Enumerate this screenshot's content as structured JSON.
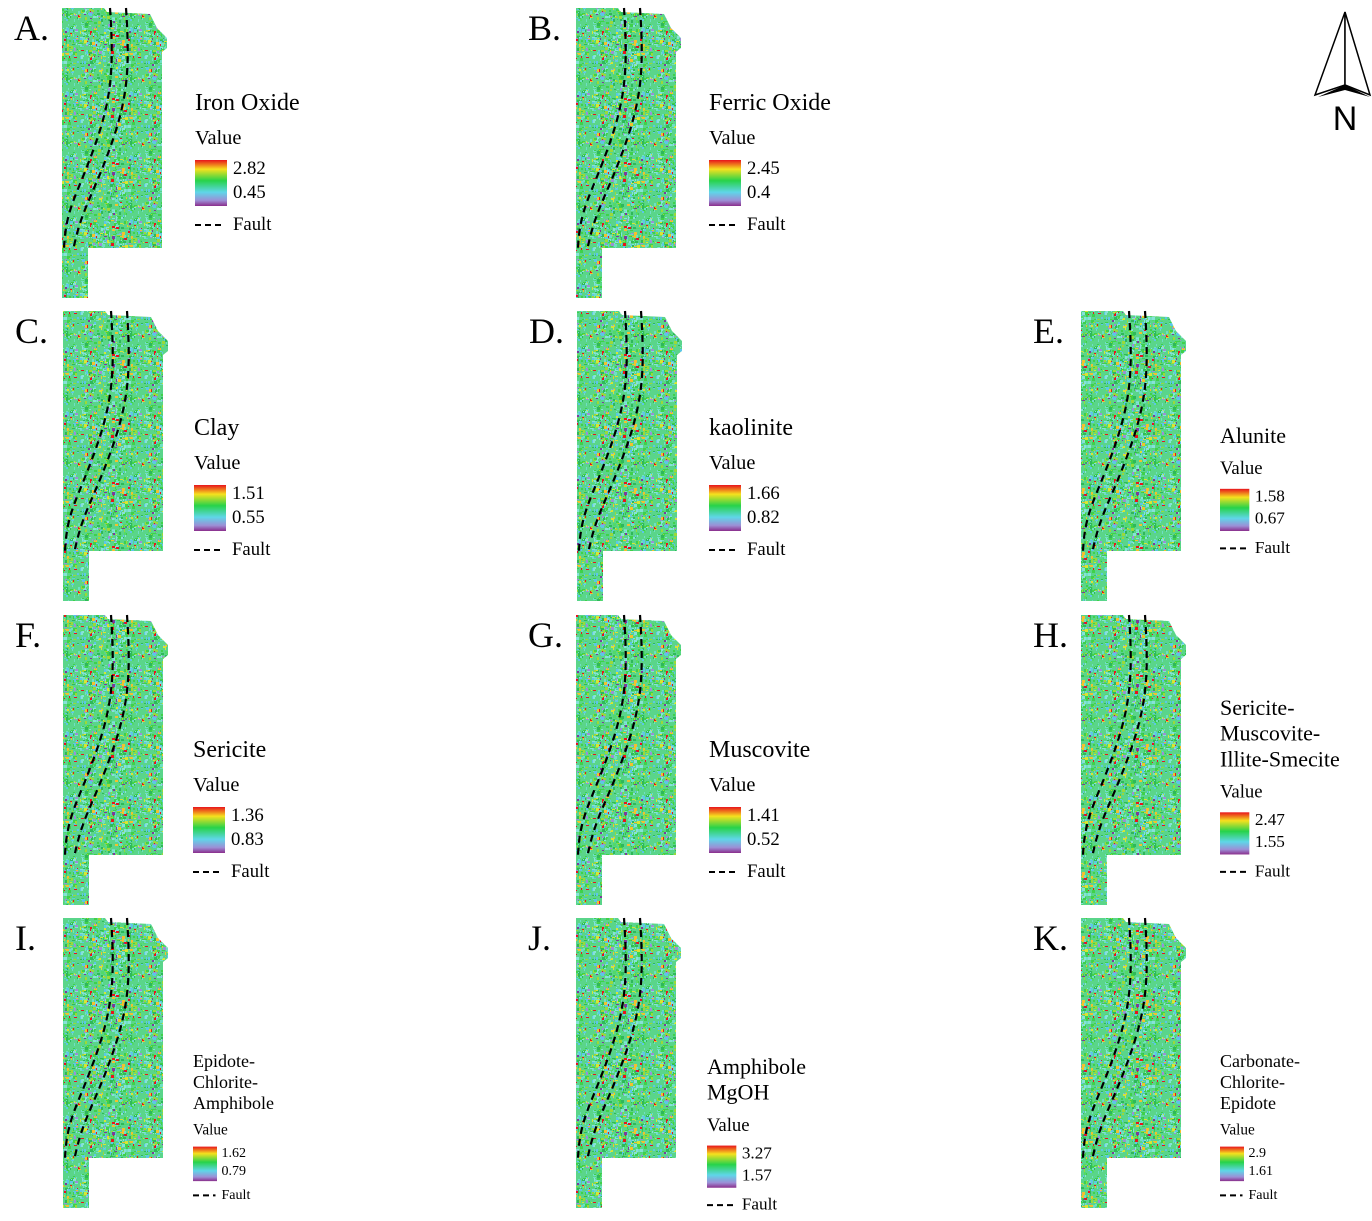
{
  "north": "N",
  "panels": [
    {
      "label": "A.",
      "title": [
        "Iron Oxide"
      ],
      "legend_heading": "Value",
      "max": 2.82,
      "min": 0.45,
      "fault": "Fault"
    },
    {
      "label": "B.",
      "title": [
        "Ferric Oxide"
      ],
      "legend_heading": "Value",
      "max": 2.45,
      "min": 0.4,
      "fault": "Fault"
    },
    {
      "label": "C.",
      "title": [
        "Clay"
      ],
      "legend_heading": "Value",
      "max": 1.51,
      "min": 0.55,
      "fault": "Fault"
    },
    {
      "label": "D.",
      "title": [
        "kaolinite"
      ],
      "legend_heading": "Value",
      "max": 1.66,
      "min": 0.82,
      "fault": "Fault"
    },
    {
      "label": "E.",
      "title": [
        "Alunite"
      ],
      "legend_heading": "Value",
      "max": 1.58,
      "min": 0.67,
      "fault": "Fault"
    },
    {
      "label": "F.",
      "title": [
        "Sericite"
      ],
      "legend_heading": "Value",
      "max": 1.36,
      "min": 0.83,
      "fault": "Fault"
    },
    {
      "label": "G.",
      "title": [
        "Muscovite"
      ],
      "legend_heading": "Value",
      "max": 1.41,
      "min": 0.52,
      "fault": "Fault"
    },
    {
      "label": "H.",
      "title": [
        "Sericite-",
        "Muscovite-",
        "Illite-Smecite"
      ],
      "legend_heading": "Value",
      "max": 2.47,
      "min": 1.55,
      "fault": "Fault"
    },
    {
      "label": "I.",
      "title": [
        "Epidote-",
        "Chlorite-",
        "Amphibole"
      ],
      "legend_heading": "Value",
      "max": 1.62,
      "min": 0.79,
      "fault": "Fault"
    },
    {
      "label": "J.",
      "title": [
        "Amphibole",
        "MgOH"
      ],
      "legend_heading": "Value",
      "max": 3.27,
      "min": 1.57,
      "fault": "Fault"
    },
    {
      "label": "K.",
      "title": [
        "Carbonate-",
        "Chlorite-",
        "Epidote"
      ],
      "legend_heading": "Value",
      "max": 2.9,
      "min": 1.61,
      "fault": "Fault"
    }
  ]
}
